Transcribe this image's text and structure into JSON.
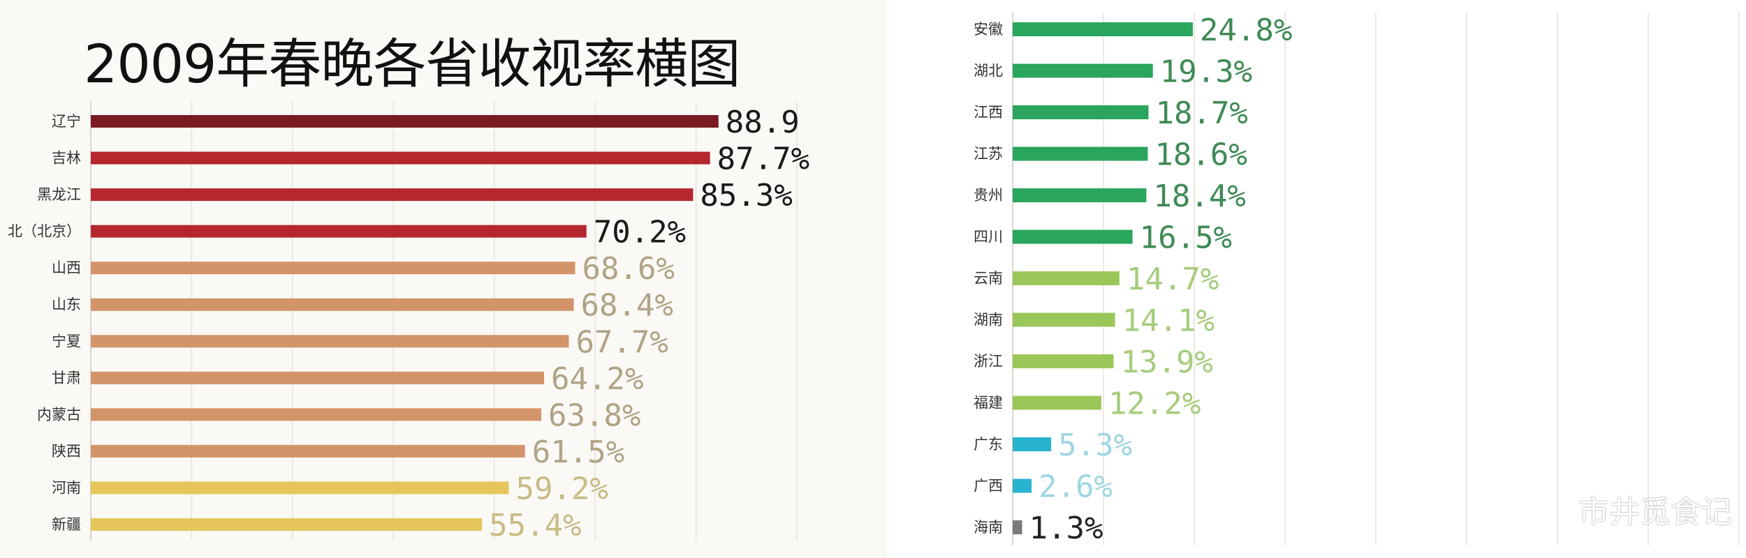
{
  "title": "2009年春晚各省收视率横图",
  "watermark": "市井觅食记",
  "chart_data": [
    {
      "type": "bar",
      "orientation": "horizontal",
      "title": "2009年春晚各省收视率横图",
      "unit": "%",
      "xlim": [
        0,
        100
      ],
      "grid": true,
      "categories": [
        "辽宁",
        "吉林",
        "黑龙江",
        "北（北京）",
        "山西",
        "山东",
        "宁夏",
        "甘肃",
        "内蒙古",
        "陕西",
        "河南",
        "新疆"
      ],
      "values": [
        88.9,
        87.7,
        85.3,
        70.2,
        68.6,
        68.4,
        67.7,
        64.2,
        63.8,
        61.5,
        59.2,
        55.4
      ],
      "value_labels": [
        "88.9",
        "87.7%",
        "85.3%",
        "70.2%",
        "68.6%",
        "68.4%",
        "67.7%",
        "64.2%",
        "63.8%",
        "61.5%",
        "59.2%",
        "55.4%"
      ],
      "bar_colors": [
        "#7a1a22",
        "#b5262f",
        "#b5262f",
        "#b5262f",
        "#d4946a",
        "#d4946a",
        "#d4946a",
        "#d4946a",
        "#d4946a",
        "#d4946a",
        "#e6c65a",
        "#e6c65a"
      ],
      "label_colors": [
        "#1a1a1a",
        "#1a1a1a",
        "#1a1a1a",
        "#1a1a1a",
        "#b0a485",
        "#b0a485",
        "#b0a485",
        "#b0a485",
        "#b0a485",
        "#b0a485",
        "#c9bb84",
        "#c9bb84"
      ]
    },
    {
      "type": "bar",
      "orientation": "horizontal",
      "unit": "%",
      "xlim": [
        0,
        100
      ],
      "grid": true,
      "categories": [
        "安徽",
        "湖北",
        "江西",
        "江苏",
        "贵州",
        "四川",
        "云南",
        "湖南",
        "浙江",
        "福建",
        "广东",
        "广西",
        "海南"
      ],
      "values": [
        24.8,
        19.3,
        18.7,
        18.6,
        18.4,
        16.5,
        14.7,
        14.1,
        13.9,
        12.2,
        5.3,
        2.6,
        1.3
      ],
      "value_labels": [
        "24.8%",
        "19.3%",
        "18.7%",
        "18.6%",
        "18.4%",
        "16.5%",
        "14.7%",
        "14.1%",
        "13.9%",
        "12.2%",
        "5.3%",
        "2.6%",
        "1.3%"
      ],
      "bar_colors": [
        "#2aa55d",
        "#2aa55d",
        "#2aa55d",
        "#2aa55d",
        "#2aa55d",
        "#2aa55d",
        "#9bc75a",
        "#9bc75a",
        "#9bc75a",
        "#9bc75a",
        "#28b3cf",
        "#28b3cf",
        "#7a7a7a"
      ],
      "label_colors": [
        "#3f8a55",
        "#3f8a55",
        "#3f8a55",
        "#3f8a55",
        "#3f8a55",
        "#3f8a55",
        "#a6cc7d",
        "#a6cc7d",
        "#a6cc7d",
        "#a6cc7d",
        "#9fd5e2",
        "#9fd5e2",
        "#222222"
      ]
    }
  ]
}
